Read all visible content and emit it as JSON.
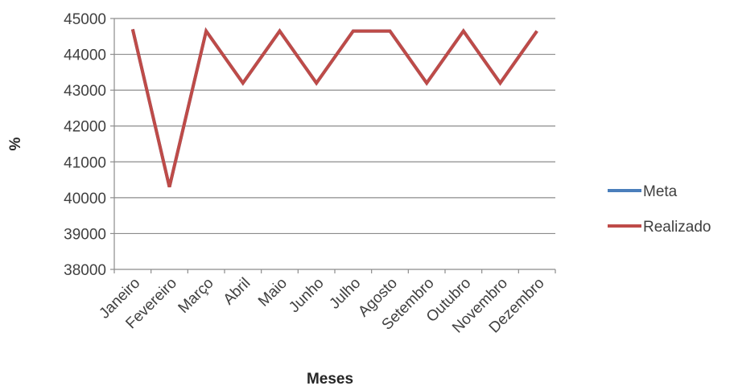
{
  "chart_data": {
    "type": "line",
    "title": "",
    "xlabel": "Meses",
    "ylabel": "%",
    "categories": [
      "Janeiro",
      "Fevereiro",
      "Março",
      "Abril",
      "Maio",
      "Junho",
      "Julho",
      "Agosto",
      "Setembro",
      "Outubro",
      "Novembro",
      "Dezembro"
    ],
    "ylim": [
      38000,
      45000
    ],
    "yticks": [
      38000,
      39000,
      40000,
      41000,
      42000,
      43000,
      44000,
      45000
    ],
    "grid": true,
    "legend_position": "right",
    "series": [
      {
        "name": "Meta",
        "color": "#4a7ebb",
        "values": [
          44700,
          40300,
          44650,
          43200,
          44650,
          43200,
          44650,
          44650,
          43200,
          44650,
          43200,
          44650
        ]
      },
      {
        "name": "Realizado",
        "color": "#be4b48",
        "values": [
          44700,
          40300,
          44650,
          43200,
          44650,
          43200,
          44650,
          44650,
          43200,
          44650,
          43200,
          44650
        ]
      }
    ]
  }
}
